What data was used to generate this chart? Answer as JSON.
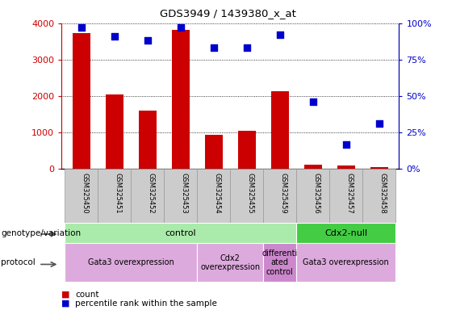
{
  "title": "GDS3949 / 1439380_x_at",
  "samples": [
    "GSM325450",
    "GSM325451",
    "GSM325452",
    "GSM325453",
    "GSM325454",
    "GSM325455",
    "GSM325459",
    "GSM325456",
    "GSM325457",
    "GSM325458"
  ],
  "counts": [
    3720,
    2050,
    1600,
    3820,
    940,
    1050,
    2130,
    110,
    90,
    50
  ],
  "percentile_ranks": [
    97,
    91,
    88,
    97,
    83,
    83,
    92,
    46,
    17,
    31
  ],
  "bar_color": "#cc0000",
  "dot_color": "#0000cc",
  "left_yaxis_color": "#cc0000",
  "right_yaxis_color": "#0000cc",
  "ylim_left": [
    0,
    4000
  ],
  "ylim_right": [
    0,
    100
  ],
  "yticks_left": [
    0,
    1000,
    2000,
    3000,
    4000
  ],
  "ytick_labels_left": [
    "0",
    "1000",
    "2000",
    "3000",
    "4000"
  ],
  "yticks_right": [
    0,
    25,
    50,
    75,
    100
  ],
  "ytick_labels_right": [
    "0%",
    "25%",
    "50%",
    "75%",
    "100%"
  ],
  "genotype_groups": [
    {
      "label": "control",
      "start": 0,
      "end": 7,
      "color": "#aaeaaa"
    },
    {
      "label": "Cdx2-null",
      "start": 7,
      "end": 10,
      "color": "#44cc44"
    }
  ],
  "protocol_groups": [
    {
      "label": "Gata3 overexpression",
      "start": 0,
      "end": 4,
      "color": "#ddaadd"
    },
    {
      "label": "Cdx2\noverexpression",
      "start": 4,
      "end": 6,
      "color": "#ddaadd"
    },
    {
      "label": "differenti\nated\ncontrol",
      "start": 6,
      "end": 7,
      "color": "#cc88cc"
    },
    {
      "label": "Gata3 overexpression",
      "start": 7,
      "end": 10,
      "color": "#ddaadd"
    }
  ],
  "legend_count_label": "count",
  "legend_pct_label": "percentile rank within the sample",
  "genotype_label": "genotype/variation",
  "protocol_label": "protocol",
  "bg_color": "#ffffff",
  "plot_bg": "#ffffff",
  "spine_color": "#000000",
  "grid_color": "#000000",
  "xlabel_box_color": "#cccccc",
  "xlabel_box_edge": "#999999"
}
